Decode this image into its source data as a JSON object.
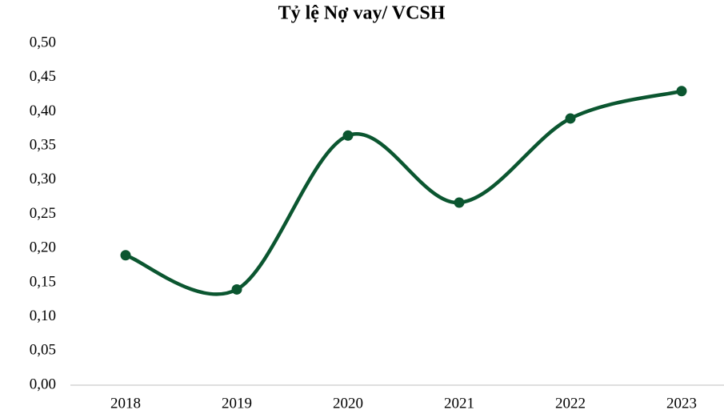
{
  "chart_data": {
    "type": "line",
    "title": "Tỷ lệ Nợ vay/ VCSH",
    "categories": [
      "2018",
      "2019",
      "2020",
      "2021",
      "2022",
      "2023"
    ],
    "values": [
      0.19,
      0.14,
      0.365,
      0.267,
      0.39,
      0.43
    ],
    "color": "#0b5630",
    "smooth": true,
    "grid": false,
    "ylim": [
      0,
      0.5
    ],
    "yticks": [
      {
        "value": 0,
        "label": "0,00"
      },
      {
        "value": 0.05,
        "label": "0,05"
      },
      {
        "value": 0.1,
        "label": "0,10"
      },
      {
        "value": 0.15,
        "label": "0,15"
      },
      {
        "value": 0.2,
        "label": "0,20"
      },
      {
        "value": 0.25,
        "label": "0,25"
      },
      {
        "value": 0.3,
        "label": "0,30"
      },
      {
        "value": 0.35,
        "label": "0,35"
      },
      {
        "value": 0.4,
        "label": "0,40"
      },
      {
        "value": 0.45,
        "label": "0,45"
      },
      {
        "value": 0.5,
        "label": "0,50"
      }
    ]
  }
}
